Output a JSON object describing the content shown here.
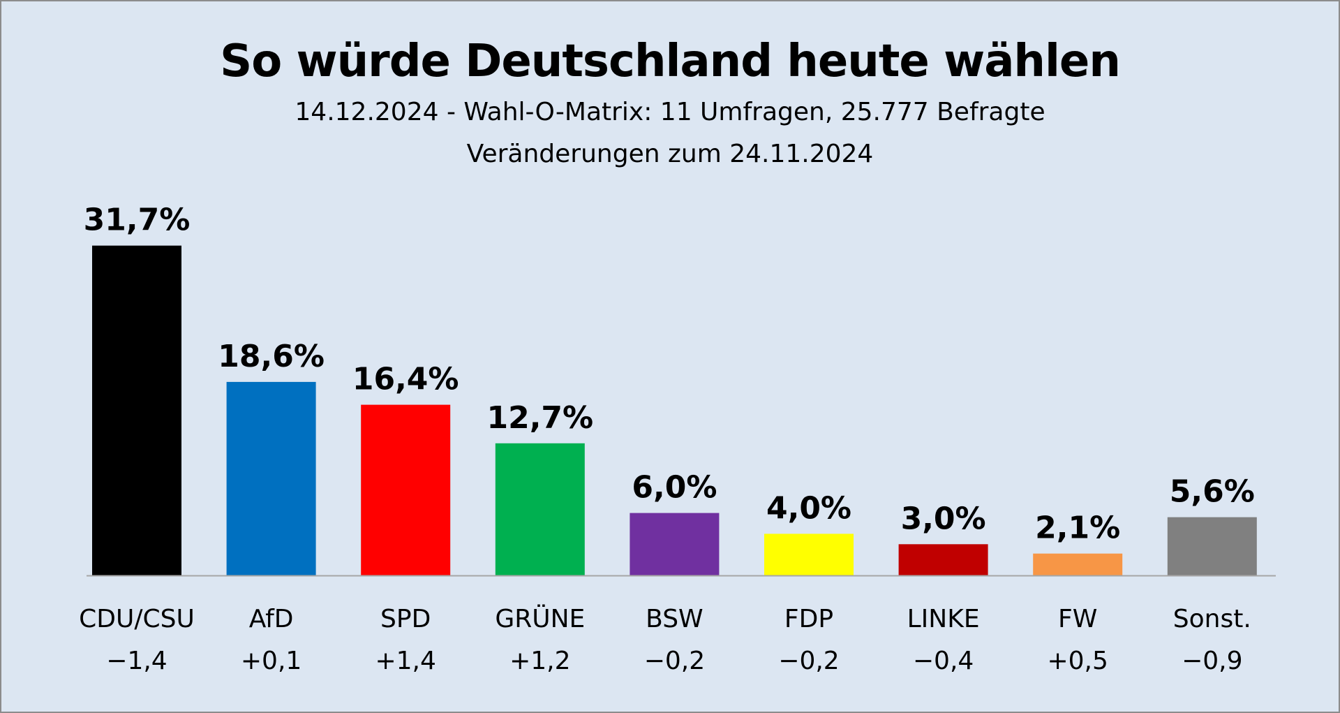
{
  "chart_data": {
    "type": "bar",
    "title": "So würde Deutschland heute wählen",
    "subtitle_line1": "14.12.2024 - Wahl-O-Matrix: 11 Umfragen, 25.777 Befragte",
    "subtitle_line2": "Veränderungen zum 24.11.2024",
    "categories": [
      "CDU/CSU",
      "AfD",
      "SPD",
      "GRÜNE",
      "BSW",
      "FDP",
      "LINKE",
      "FW",
      "Sonst."
    ],
    "values": [
      31.7,
      18.6,
      16.4,
      12.7,
      6.0,
      4.0,
      3.0,
      2.1,
      5.6
    ],
    "value_labels": [
      "31,7%",
      "18,6%",
      "16,4%",
      "12,7%",
      "6,0%",
      "4,0%",
      "3,0%",
      "2,1%",
      "5,6%"
    ],
    "changes": [
      "−1,4",
      "+0,1",
      "+1,4",
      "+1,2",
      "−0,2",
      "−0,2",
      "−0,4",
      "+0,5",
      "−0,9"
    ],
    "colors": [
      "#000000",
      "#0070c0",
      "#ff0000",
      "#00b050",
      "#7030a0",
      "#ffff00",
      "#c00000",
      "#f79646",
      "#808080"
    ],
    "background": "#dce6f2",
    "xlabel": "",
    "ylabel": "",
    "grid": false,
    "legend": "none"
  }
}
